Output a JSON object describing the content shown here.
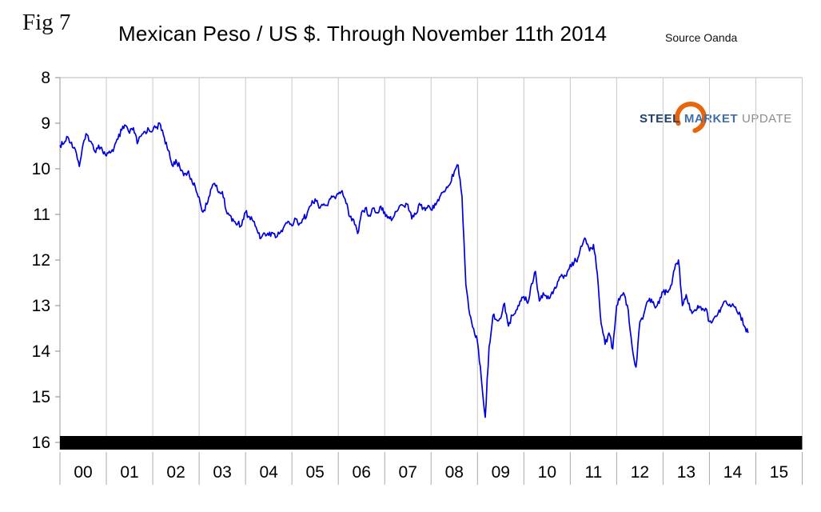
{
  "figure_label": "Fig 7",
  "title": "Mexican Peso / US $. Through November 11th 2014",
  "source": "Source Oanda",
  "logo": {
    "steel": "STEEL",
    "market": "MARKET",
    "update": "UPDATE",
    "orange": "#E8650D",
    "navy": "#1F3F6E",
    "blue": "#3F6FA8",
    "gray": "#8C8C8C"
  },
  "chart_data": {
    "type": "line",
    "title": "Mexican Peso / US $. Through November 11th 2014",
    "source": "Source Oanda",
    "legend": "none",
    "grid": "vertical-yearly",
    "x_axis": {
      "start_year": 2000,
      "end_year": 2016,
      "tick_labels": [
        "00",
        "01",
        "02",
        "03",
        "04",
        "05",
        "06",
        "07",
        "08",
        "09",
        "10",
        "11",
        "12",
        "13",
        "14",
        "15"
      ]
    },
    "y_axis": {
      "min": 8,
      "max": 16,
      "inverted_display": true,
      "tick_labels": [
        "8",
        "9",
        "10",
        "11",
        "12",
        "13",
        "14",
        "15",
        "16"
      ],
      "unit": "MXN per USD"
    },
    "series": [
      {
        "name": "Mexican Peso per US Dollar (monthly, Jan 2000 - Nov 2014)",
        "color": "#0000DD",
        "x_start_year": 2000,
        "x_step_years": 0.0833333,
        "values": [
          9.48,
          9.45,
          9.3,
          9.42,
          9.58,
          9.95,
          9.45,
          9.25,
          9.4,
          9.62,
          9.48,
          9.6,
          9.72,
          9.65,
          9.54,
          9.35,
          9.15,
          9.05,
          9.22,
          9.1,
          9.45,
          9.28,
          9.18,
          9.14,
          9.16,
          9.08,
          9.03,
          9.32,
          9.6,
          9.92,
          9.8,
          9.96,
          10.15,
          10.08,
          10.22,
          10.4,
          10.62,
          10.95,
          10.78,
          10.45,
          10.32,
          10.52,
          10.5,
          10.92,
          11.02,
          11.15,
          11.2,
          11.24,
          10.95,
          11.05,
          11.15,
          11.35,
          11.52,
          11.42,
          11.46,
          11.4,
          11.5,
          11.4,
          11.26,
          11.15,
          11.25,
          11.1,
          11.2,
          11.1,
          10.96,
          10.8,
          10.66,
          10.86,
          10.8,
          10.8,
          10.66,
          10.62,
          10.55,
          10.48,
          10.76,
          11.05,
          11.12,
          11.42,
          10.96,
          10.86,
          11.02,
          10.86,
          10.96,
          10.82,
          10.95,
          11.05,
          11.1,
          10.94,
          10.8,
          10.82,
          10.78,
          11.1,
          11.0,
          10.76,
          10.86,
          10.86,
          10.9,
          10.76,
          10.7,
          10.52,
          10.4,
          10.32,
          10.06,
          9.92,
          10.6,
          12.55,
          13.2,
          13.5,
          13.8,
          14.6,
          15.45,
          13.9,
          13.22,
          13.32,
          13.28,
          12.95,
          13.45,
          13.22,
          13.1,
          12.9,
          12.8,
          12.95,
          12.52,
          12.25,
          12.9,
          12.72,
          12.85,
          12.76,
          12.6,
          12.45,
          12.35,
          12.35,
          12.1,
          12.05,
          11.95,
          11.7,
          11.55,
          11.8,
          11.66,
          12.3,
          13.4,
          13.85,
          13.6,
          13.95,
          13.0,
          12.8,
          12.76,
          13.1,
          13.9,
          14.35,
          13.36,
          13.2,
          12.9,
          12.86,
          13.05,
          12.95,
          12.7,
          12.7,
          12.56,
          12.2,
          12.0,
          13.0,
          12.76,
          13.1,
          13.12,
          13.0,
          13.1,
          13.06,
          13.35,
          13.3,
          13.22,
          13.05,
          12.9,
          13.0,
          12.96,
          13.1,
          13.2,
          13.45,
          13.6
        ]
      }
    ]
  }
}
